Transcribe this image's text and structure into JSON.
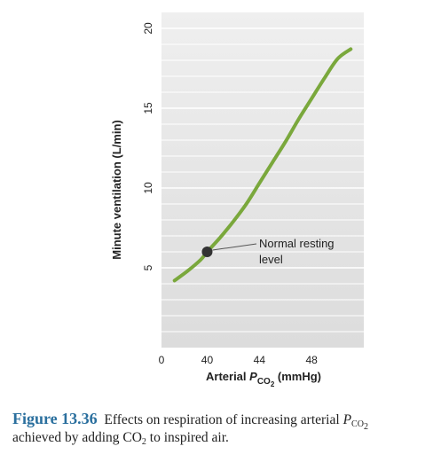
{
  "chart_data": {
    "type": "line",
    "xlabel_prefix": "Arterial ",
    "xlabel_var": "P",
    "xlabel_sub": "CO",
    "xlabel_sub2": "2",
    "xlabel_unit": " (mmHg)",
    "ylabel": "Minute ventilation (L/min)",
    "x_ticks": [
      "0",
      "40",
      "44",
      "48"
    ],
    "y_ticks": [
      "5",
      "10",
      "15",
      "20"
    ],
    "xlim": [
      36.5,
      52
    ],
    "ylim": [
      0,
      21
    ],
    "grid": "horizontal",
    "series": [
      {
        "x": [
          37.5,
          38.5,
          39.5,
          40,
          41,
          42,
          43,
          44,
          45,
          46,
          47,
          48,
          49,
          50,
          51
        ],
        "y": [
          4.2,
          4.8,
          5.5,
          6.0,
          6.9,
          7.9,
          9.0,
          10.3,
          11.6,
          12.9,
          14.3,
          15.6,
          16.9,
          18.1,
          18.7
        ],
        "color": "#7aa83c"
      }
    ],
    "highlight_point": {
      "x": 40,
      "y": 6.0,
      "color": "#333333"
    },
    "annotation_lines": [
      "Normal resting",
      "level"
    ]
  },
  "caption": {
    "figure_label": "Figure 13.36",
    "text_part1": "Effects on respiration of increasing arterial ",
    "text_var": "P",
    "text_sub": "CO",
    "text_sub2": "2",
    "text_part2": "achieved by adding CO",
    "text_sub3": "2",
    "text_part3": " to inspired air."
  }
}
